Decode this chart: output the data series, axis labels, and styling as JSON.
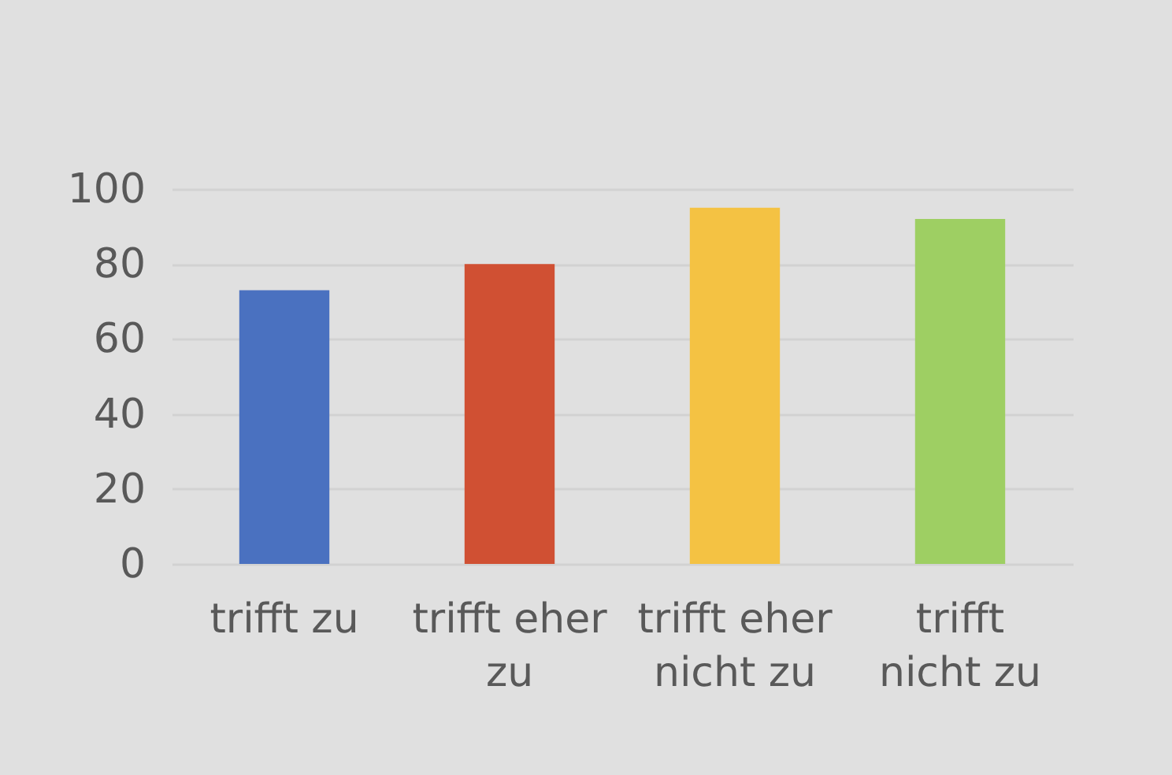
{
  "chart_data": {
    "type": "bar",
    "categories": [
      "trifft zu",
      "trifft eher zu",
      "trifft eher nicht zu",
      "trifft nicht zu"
    ],
    "values": [
      73,
      80,
      95,
      92
    ],
    "colors": [
      "#4a71c0",
      "#d05033",
      "#f4c243",
      "#9ecf63"
    ],
    "ylim": [
      0,
      100
    ],
    "yticks": [
      0,
      20,
      40,
      60,
      80,
      100
    ],
    "grid": "y"
  }
}
